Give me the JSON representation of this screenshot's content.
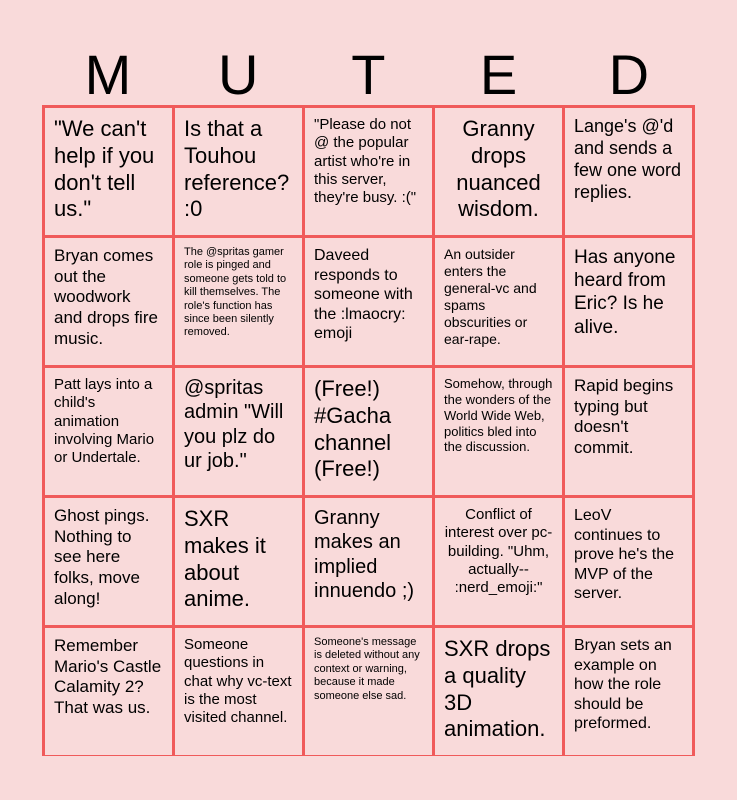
{
  "header": {
    "letters": [
      "M",
      "U",
      "T",
      "E",
      "D"
    ]
  },
  "grid": {
    "rows": [
      [
        "\"We can't help if you don't tell us.\"",
        "Is that a Touhou reference? :0",
        "\"Please do not @ the popular artist who're in this server, they're busy. :(\"",
        "Granny drops nuanced wisdom.",
        "Lange's @'d and sends a few one word replies."
      ],
      [
        "Bryan comes out the woodwork and drops fire music.",
        "The @spritas gamer role is pinged and someone gets told to kill themselves. The role's function has since been silently removed.",
        "Daveed responds to someone with the :lmaocry: emoji",
        "An outsider enters the general-vc and spams obscurities or ear-rape.",
        "Has anyone heard from Eric? Is he alive."
      ],
      [
        "Patt lays into a child's animation involving Mario or Undertale.",
        "@spritas admin \"Will you plz do ur job.\"",
        "(Free!) #Gacha channel (Free!)",
        "Somehow, through the wonders of the World Wide Web, politics bled into the discussion.",
        "Rapid begins typing but doesn't commit."
      ],
      [
        "Ghost pings. Nothing to see here folks, move along!",
        "SXR makes it about anime.",
        "Granny makes an implied innuendo ;)",
        "Conflict of interest over pc-building. \"Uhm, actually-- :nerd_emoji:\"",
        "LeoV continues to prove he's the MVP of the server."
      ],
      [
        "Remember Mario's Castle Calamity 2? That was us.",
        "Someone questions in chat why vc-text is the most visited channel.",
        "Someone's message is deleted without any context or warning, because it made someone else sad.",
        "SXR drops a quality 3D animation.",
        "Bryan sets an example on how the role should be preformed."
      ]
    ]
  }
}
